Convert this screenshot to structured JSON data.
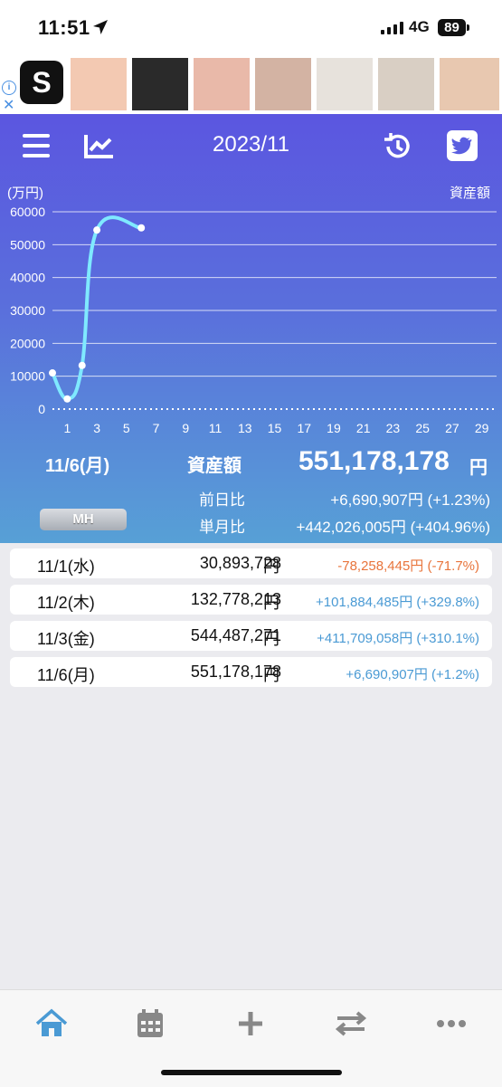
{
  "status_bar": {
    "time": "11:51",
    "network": "4G",
    "battery": "89"
  },
  "ad": {
    "logo_letter": "S",
    "info_icon": "info-icon",
    "close_icon": "close-icon"
  },
  "header": {
    "title": "2023/11",
    "menu_icon": "menu-icon",
    "chart_icon": "chart-icon",
    "history_icon": "history-icon",
    "twitter_icon": "twitter-icon"
  },
  "chart_data": {
    "type": "line",
    "ylabel": "(万円)",
    "series_label": "資産額",
    "x_ticks": [
      "1",
      "3",
      "5",
      "7",
      "9",
      "11",
      "13",
      "15",
      "17",
      "19",
      "21",
      "23",
      "25",
      "27",
      "29"
    ],
    "y_ticks": [
      "60000",
      "50000",
      "40000",
      "30000",
      "20000",
      "10000",
      "0"
    ],
    "ylim": [
      0,
      60000
    ],
    "xlim": [
      0,
      30
    ],
    "points": [
      {
        "x": 0,
        "y": 11000
      },
      {
        "x": 1,
        "y": 3089
      },
      {
        "x": 2,
        "y": 13278
      },
      {
        "x": 3,
        "y": 54449
      },
      {
        "x": 6,
        "y": 55118
      }
    ],
    "grid": true,
    "line_color": "#7fe9ff"
  },
  "summary": {
    "date": "11/6(月)",
    "label": "資産額",
    "value": "551,178,178",
    "yen": "円",
    "prev_day_label": "前日比",
    "prev_day_value": "+6,690,907円 (+1.23%)",
    "month_label": "単月比",
    "month_value": "+442,026,005円 (+404.96%)",
    "badge": "MH"
  },
  "entries": [
    {
      "date": "11/1(水)",
      "amount": "30,893,728",
      "yen": "円",
      "diff": "-78,258,445円 (-71.7%)",
      "sign": "neg"
    },
    {
      "date": "11/2(木)",
      "amount": "132,778,213",
      "yen": "円",
      "diff": "+101,884,485円 (+329.8%)",
      "sign": "pos"
    },
    {
      "date": "11/3(金)",
      "amount": "544,487,271",
      "yen": "円",
      "diff": "+411,709,058円 (+310.1%)",
      "sign": "pos"
    },
    {
      "date": "11/6(月)",
      "amount": "551,178,178",
      "yen": "円",
      "diff": "+6,690,907円 (+1.2%)",
      "sign": "pos"
    }
  ],
  "tabbar": [
    "home-icon",
    "calendar-icon",
    "plus-icon",
    "transfer-icon",
    "more-icon"
  ],
  "colors": {
    "accent": "#4a9ad4",
    "negative": "#e8743b",
    "header_top": "#5b56e0",
    "header_bottom": "#57a0d6"
  }
}
